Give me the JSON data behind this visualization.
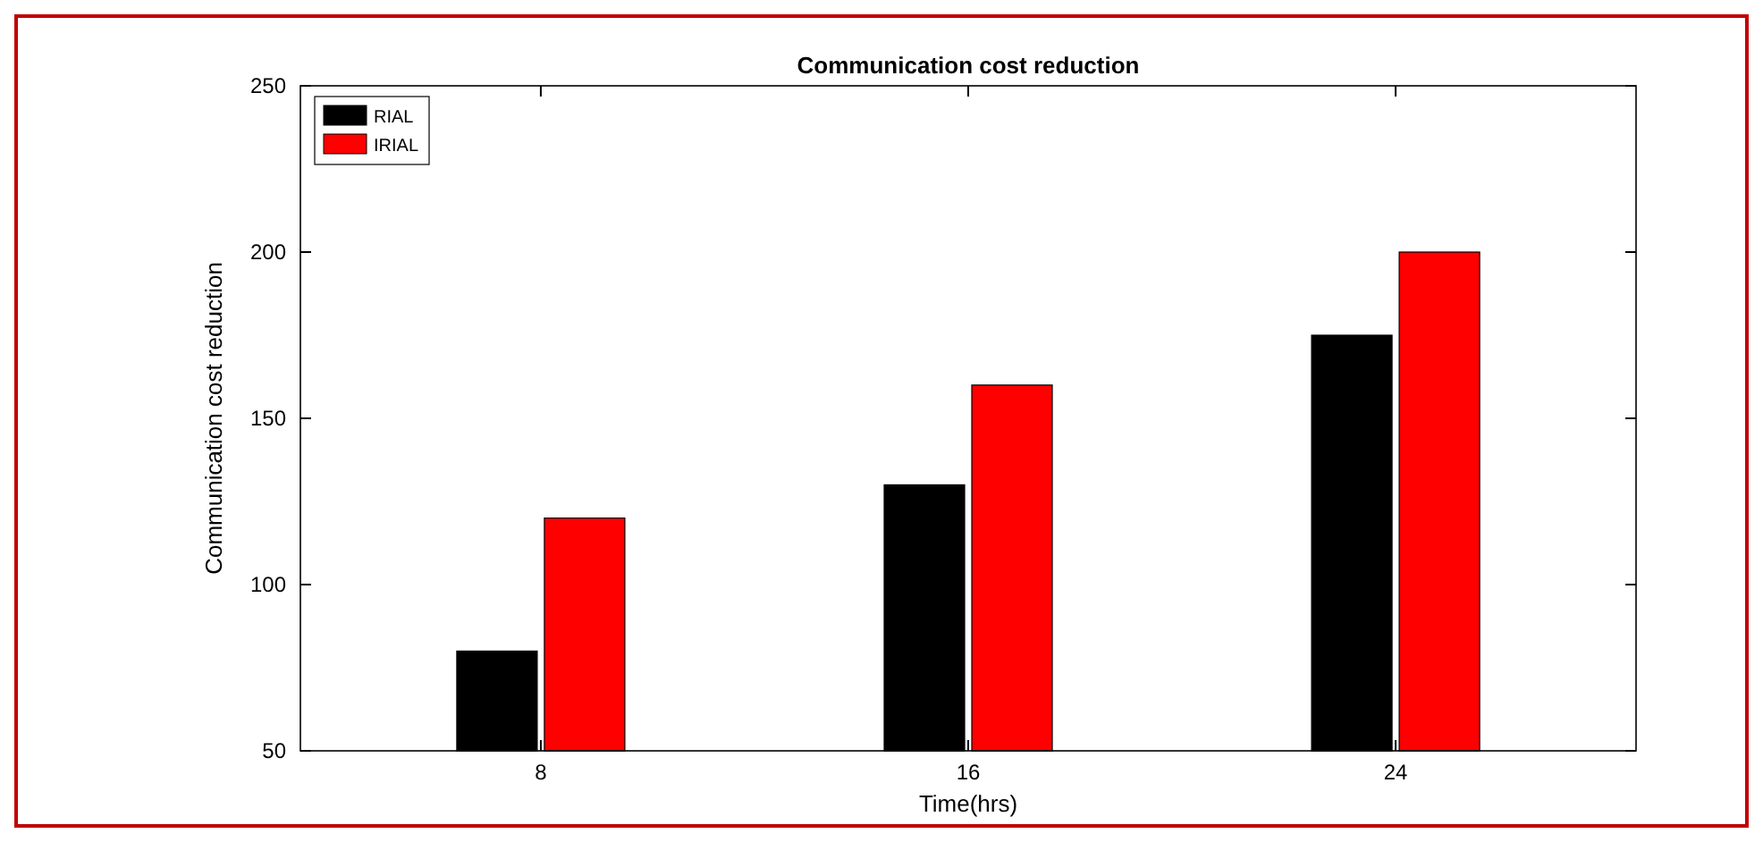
{
  "chart_data": {
    "type": "bar",
    "title": "Communication cost reduction",
    "xlabel": "Time(hrs)",
    "ylabel": "Communication cost reduction",
    "categories": [
      "8",
      "16",
      "24"
    ],
    "series": [
      {
        "name": "RIAL",
        "color": "#000000",
        "values": [
          80,
          130,
          175
        ]
      },
      {
        "name": "IRIAL",
        "color": "#ff0000",
        "values": [
          120,
          160,
          200
        ]
      }
    ],
    "ylim": [
      50,
      250
    ],
    "yticks": [
      50,
      100,
      150,
      200,
      250
    ],
    "grid": false,
    "legend": "top left"
  }
}
